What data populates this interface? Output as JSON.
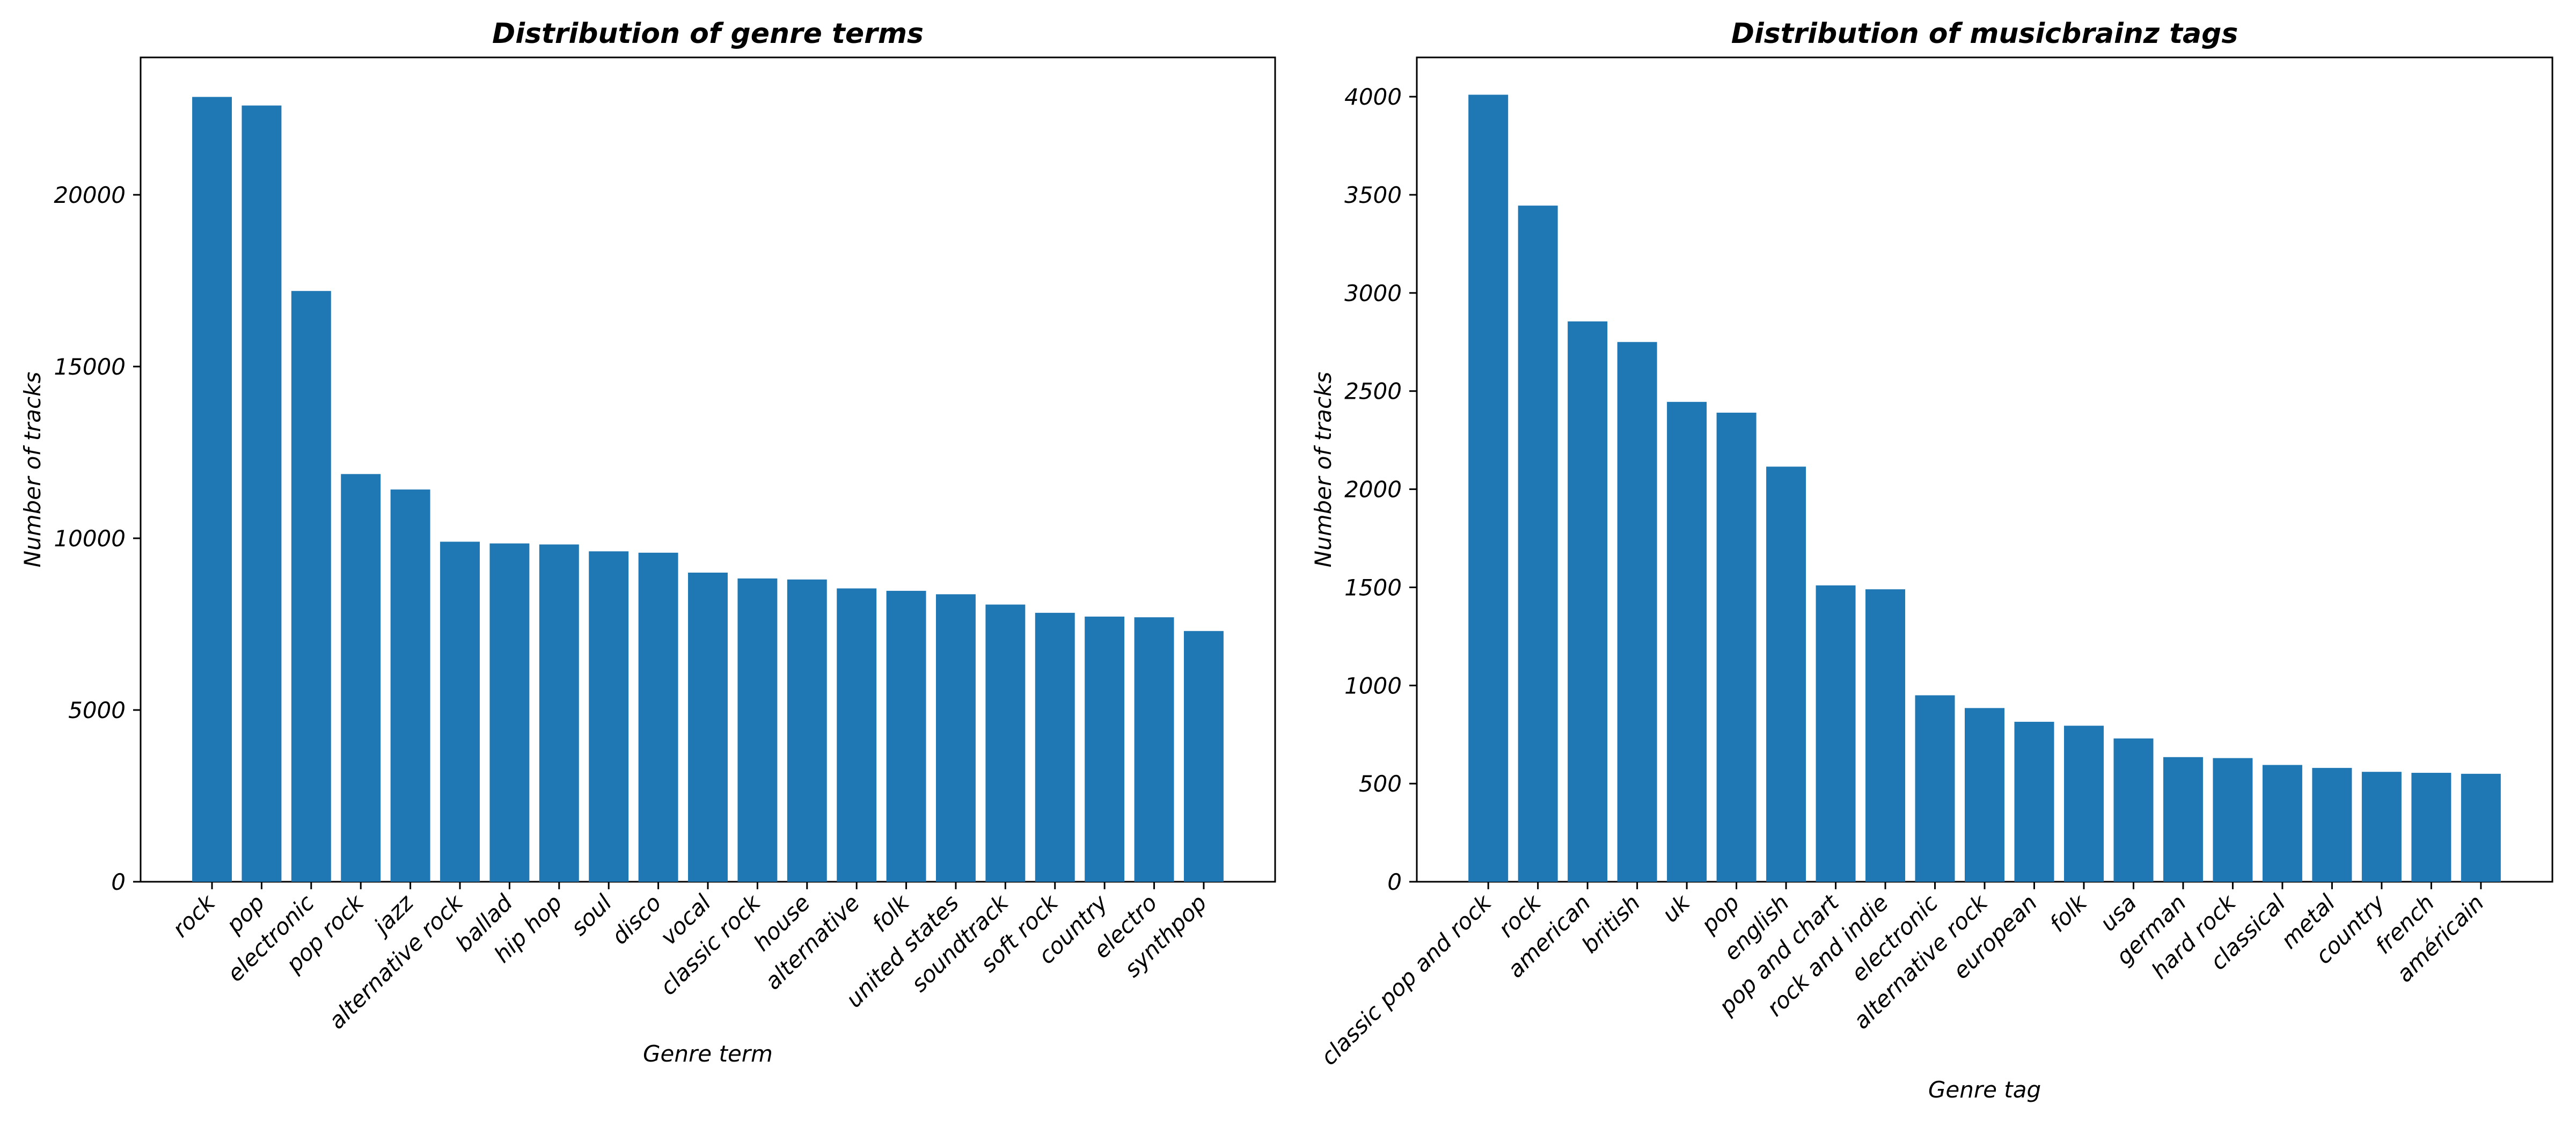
{
  "chart_data": [
    {
      "type": "bar",
      "title": "Distribution of genre terms",
      "xlabel": "Genre term",
      "ylabel": "Number of tracks",
      "ylim": [
        0,
        24000
      ],
      "yticks": [
        0,
        5000,
        10000,
        15000,
        20000
      ],
      "grid": false,
      "bar_color": "#1f77b4",
      "categories": [
        "rock",
        "pop",
        "electronic",
        "pop rock",
        "jazz",
        "alternative rock",
        "ballad",
        "hip hop",
        "soul",
        "disco",
        "vocal",
        "classic rock",
        "house",
        "alternative",
        "folk",
        "united states",
        "soundtrack",
        "soft rock",
        "country",
        "electro",
        "synthpop"
      ],
      "values": [
        22850,
        22600,
        17200,
        11870,
        11420,
        9900,
        9850,
        9820,
        9620,
        9580,
        9000,
        8830,
        8800,
        8540,
        8470,
        8370,
        8070,
        7830,
        7720,
        7700,
        7300
      ]
    },
    {
      "type": "bar",
      "title": "Distribution of musicbrainz tags",
      "xlabel": "Genre tag",
      "ylabel": "Number of tracks",
      "ylim": [
        0,
        4200
      ],
      "yticks": [
        0,
        500,
        1000,
        1500,
        2000,
        2500,
        3000,
        3500,
        4000
      ],
      "grid": false,
      "bar_color": "#1f77b4",
      "categories": [
        "classic pop and rock",
        "rock",
        "american",
        "british",
        "uk",
        "pop",
        "english",
        "pop and chart",
        "rock and indie",
        "electronic",
        "alternative rock",
        "european",
        "folk",
        "usa",
        "german",
        "hard rock",
        "classical",
        "metal",
        "country",
        "french",
        "américain"
      ],
      "values": [
        4010,
        3445,
        2855,
        2750,
        2445,
        2390,
        2115,
        1510,
        1490,
        950,
        885,
        815,
        795,
        730,
        635,
        630,
        595,
        580,
        560,
        555,
        550
      ]
    }
  ]
}
